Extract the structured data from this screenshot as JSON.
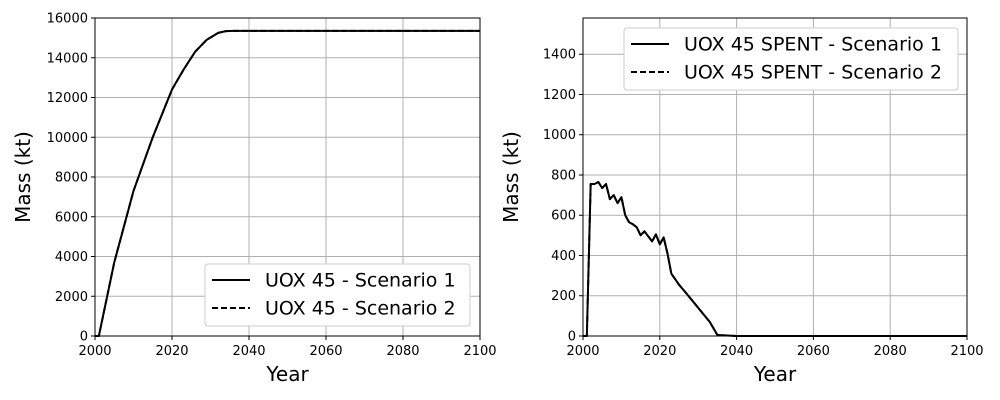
{
  "chart_data": [
    {
      "type": "line",
      "xlabel": "Year",
      "ylabel": "Mass (kt)",
      "xlim": [
        2000,
        2100
      ],
      "ylim": [
        0,
        16000
      ],
      "xticks": [
        2000,
        2020,
        2040,
        2060,
        2080,
        2100
      ],
      "yticks": [
        0,
        2000,
        4000,
        6000,
        8000,
        10000,
        12000,
        14000,
        16000
      ],
      "grid": true,
      "legend_position": "lower-right",
      "series": [
        {
          "name": "UOX 45 - Scenario 1",
          "style": "solid",
          "color": "#000000",
          "x": [
            2000,
            2001,
            2005,
            2010,
            2015,
            2020,
            2023,
            2026,
            2029,
            2032,
            2034,
            2036,
            2040,
            2060,
            2080,
            2100
          ],
          "y": [
            0,
            0,
            3700,
            7300,
            10000,
            12400,
            13400,
            14300,
            14900,
            15250,
            15340,
            15350,
            15350,
            15350,
            15350,
            15350
          ]
        },
        {
          "name": "UOX 45 - Scenario 2",
          "style": "dashed",
          "color": "#000000",
          "x": [
            2000,
            2001,
            2005,
            2010,
            2015,
            2020,
            2023,
            2026,
            2029,
            2032,
            2034,
            2036,
            2040,
            2060,
            2080,
            2100
          ],
          "y": [
            0,
            0,
            3700,
            7300,
            10000,
            12400,
            13400,
            14300,
            14900,
            15250,
            15340,
            15350,
            15350,
            15350,
            15350,
            15350
          ]
        }
      ]
    },
    {
      "type": "line",
      "xlabel": "Year",
      "ylabel": "Mass (kt)",
      "xlim": [
        2000,
        2100
      ],
      "ylim": [
        0,
        1580
      ],
      "xticks": [
        2000,
        2020,
        2040,
        2060,
        2080,
        2100
      ],
      "yticks": [
        0,
        200,
        400,
        600,
        800,
        1000,
        1200,
        1400
      ],
      "grid": true,
      "legend_position": "upper-right",
      "series": [
        {
          "name": "UOX 45 SPENT - Scenario 1",
          "style": "solid",
          "color": "#000000",
          "x": [
            2000,
            2001,
            2002,
            2003,
            2004,
            2005,
            2006,
            2007,
            2008,
            2009,
            2010,
            2011,
            2012,
            2013,
            2014,
            2015,
            2016,
            2017,
            2018,
            2019,
            2020,
            2021,
            2022,
            2023,
            2025,
            2027,
            2030,
            2033,
            2035,
            2040,
            2060,
            2080,
            2100
          ],
          "y": [
            0,
            0,
            755,
            755,
            765,
            735,
            755,
            680,
            700,
            660,
            690,
            600,
            565,
            555,
            540,
            500,
            520,
            495,
            470,
            505,
            455,
            490,
            410,
            310,
            255,
            210,
            140,
            70,
            5,
            0,
            0,
            0,
            0
          ]
        },
        {
          "name": "UOX 45 SPENT - Scenario 2",
          "style": "dashed",
          "color": "#000000",
          "x": [
            2000,
            2001,
            2002,
            2003,
            2004,
            2005,
            2006,
            2007,
            2008,
            2009,
            2010,
            2011,
            2012,
            2013,
            2014,
            2015,
            2016,
            2017,
            2018,
            2019,
            2020,
            2021,
            2022,
            2023,
            2025,
            2027,
            2030,
            2033,
            2035,
            2040,
            2060,
            2080,
            2100
          ],
          "y": [
            0,
            0,
            755,
            755,
            765,
            735,
            755,
            680,
            700,
            660,
            690,
            600,
            565,
            555,
            540,
            500,
            520,
            495,
            470,
            505,
            455,
            490,
            410,
            310,
            255,
            210,
            140,
            70,
            5,
            0,
            0,
            0,
            0
          ]
        }
      ]
    }
  ]
}
